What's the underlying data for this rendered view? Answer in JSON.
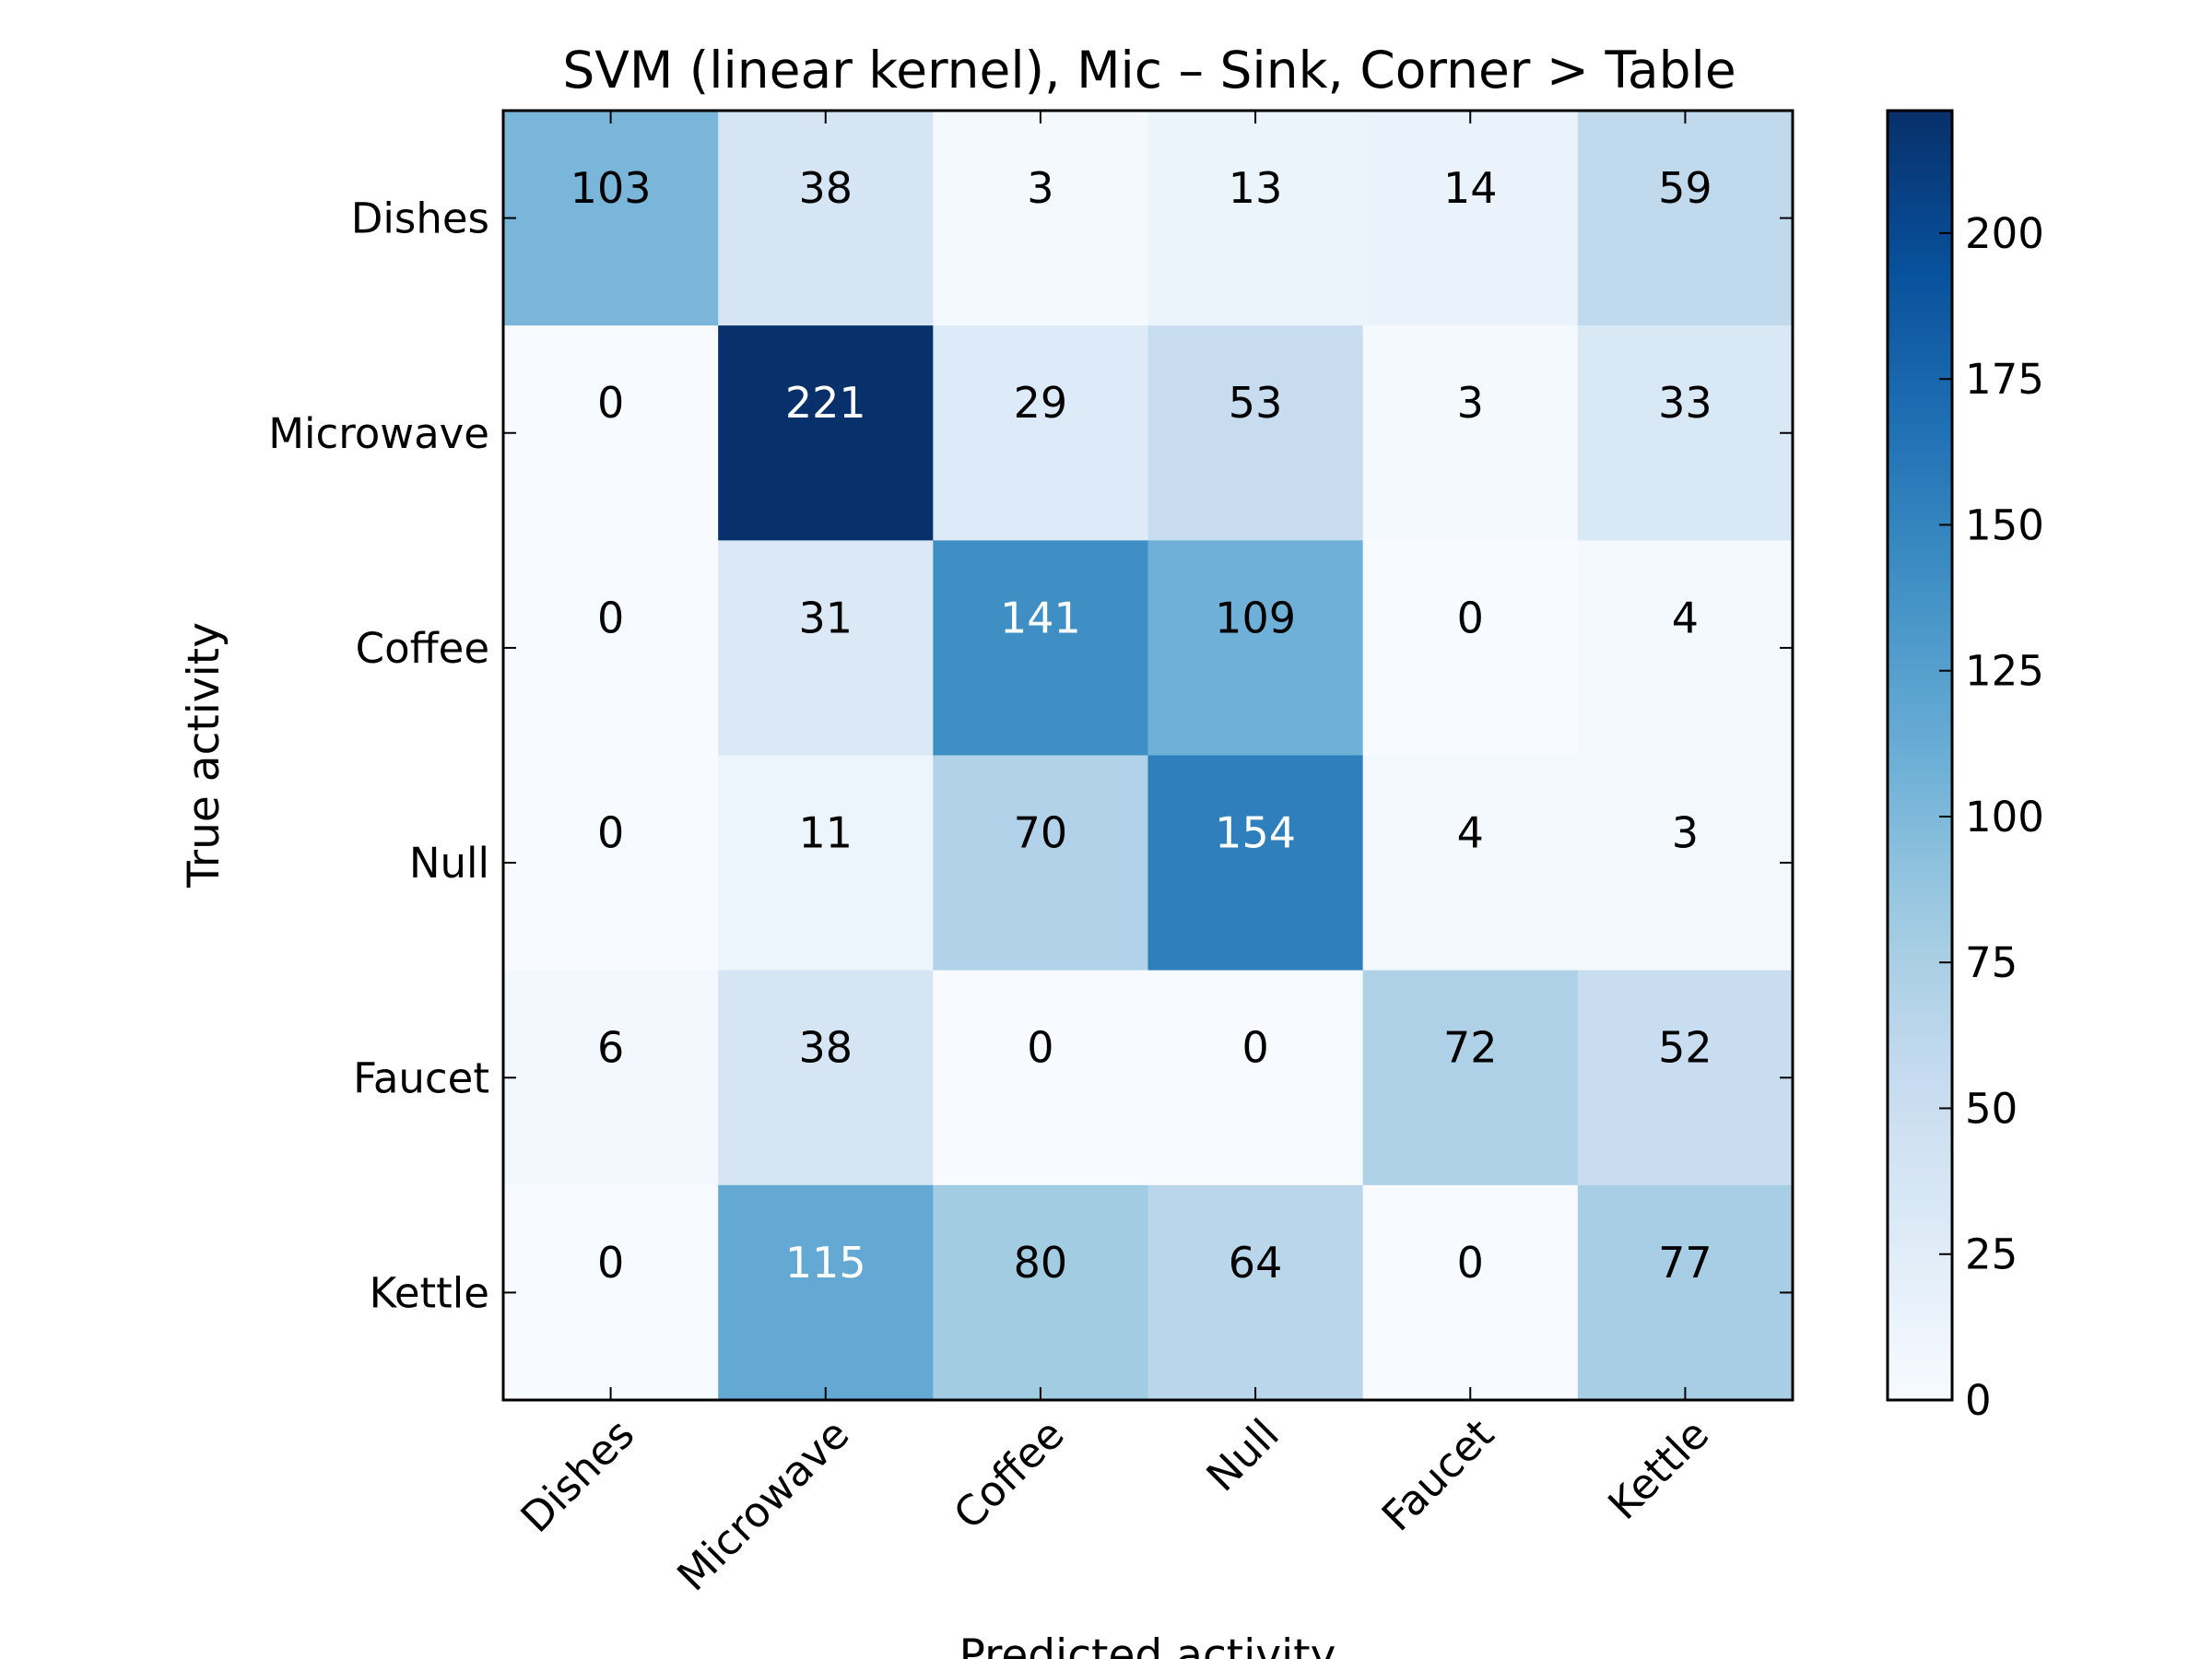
{
  "chart_data": {
    "type": "heatmap",
    "title": "SVM (linear kernel), Mic – Sink, Corner > Table",
    "xlabel": "Predicted activity",
    "ylabel": "True activity",
    "x_categories": [
      "Dishes",
      "Microwave",
      "Coffee",
      "Null",
      "Faucet",
      "Kettle"
    ],
    "y_categories": [
      "Dishes",
      "Microwave",
      "Coffee",
      "Null",
      "Faucet",
      "Kettle"
    ],
    "values": [
      [
        103,
        38,
        3,
        13,
        14,
        59
      ],
      [
        0,
        221,
        29,
        53,
        3,
        33
      ],
      [
        0,
        31,
        141,
        109,
        0,
        4
      ],
      [
        0,
        11,
        70,
        154,
        4,
        3
      ],
      [
        6,
        38,
        0,
        0,
        72,
        52
      ],
      [
        0,
        115,
        80,
        64,
        0,
        77
      ]
    ],
    "colormap": "Blues",
    "colormap_colors": [
      "#f7fbff",
      "#deebf7",
      "#c6dbef",
      "#9ecae1",
      "#6baed6",
      "#4292c6",
      "#2171b5",
      "#08519c",
      "#08306b"
    ],
    "vmin": 0,
    "vmax": 221,
    "colorbar_ticks": [
      "0",
      "25",
      "50",
      "75",
      "100",
      "125",
      "150",
      "175",
      "200"
    ],
    "text_color_light": "#ffffff",
    "text_color_dark": "#000000"
  }
}
